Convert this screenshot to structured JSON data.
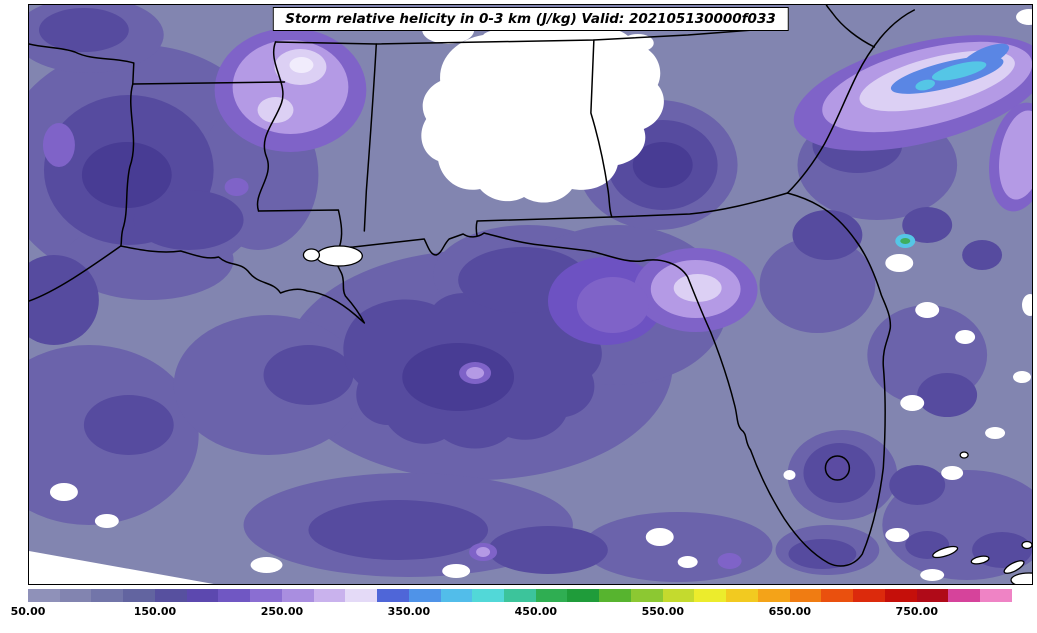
{
  "title": "Storm relative helicity in 0-3 km (J/kg) Valid: 202105130000f033",
  "colorbar": {
    "min": 50,
    "max": 825,
    "interval": 25,
    "ticks": [
      {
        "value": 50,
        "label": "50.00"
      },
      {
        "value": 150,
        "label": "150.00"
      },
      {
        "value": 250,
        "label": "250.00"
      },
      {
        "value": 350,
        "label": "350.00"
      },
      {
        "value": 450,
        "label": "450.00"
      },
      {
        "value": 550,
        "label": "550.00"
      },
      {
        "value": 650,
        "label": "650.00"
      },
      {
        "value": 750,
        "label": "750.00"
      }
    ],
    "colors": [
      "#8f91b9",
      "#8284b0",
      "#7275a9",
      "#6264a0",
      "#57509f",
      "#5c48af",
      "#7057c3",
      "#8a6ed2",
      "#a98ee0",
      "#c9b2ed",
      "#e4daf7",
      "#4f66d8",
      "#4f93e8",
      "#52bdea",
      "#52d8d8",
      "#3cc49b",
      "#2fae52",
      "#1f9c3a",
      "#57b42f",
      "#8cc832",
      "#c4da2e",
      "#ecec2c",
      "#f2ca20",
      "#f4a318",
      "#f07c12",
      "#ea500e",
      "#dc2a0c",
      "#c50f0a",
      "#b00a18",
      "#d6439b",
      "#ef83c5"
    ]
  },
  "chart_data": {
    "type": "heatmap",
    "subtype": "filled-contour weather map",
    "title": "Storm relative helicity in 0-3 km (J/kg) Valid: 202105130000f033",
    "variable": "Storm relative helicity in 0-3 km",
    "units": "J/kg",
    "valid_time": "202105130000f033",
    "region": "Southeastern United States and northern Gulf of Mexico (east Texas/Louisiana eastward to the Atlantic; Tennessee border south past the Florida peninsula)",
    "legend_position": "bottom horizontal colorbar",
    "grid": false,
    "value_range": [
      50,
      825
    ],
    "contour_interval": 25,
    "colorbar_tick_values": [
      50,
      150,
      250,
      350,
      450,
      550,
      650,
      750
    ],
    "colorbar_tick_labels": [
      "50.00",
      "150.00",
      "250.00",
      "350.00",
      "450.00",
      "550.00",
      "650.00",
      "750.00"
    ],
    "notable_features": [
      {
        "location": "central Alabama and west-central Georgia",
        "value_jkg": "< 50 (white minimum)"
      },
      {
        "location": "northern Mississippi",
        "value_jkg": "250-325 local maximum (pale lavender)"
      },
      {
        "location": "Florida Big Bend coast",
        "value_jkg": "250-300 local maximum (pale lavender)"
      },
      {
        "location": "Atlantic off Georgia / South Carolina coast",
        "value_jkg": "300-425 maximum (blue/cyan core)"
      },
      {
        "location": "most of Gulf of Mexico, Louisiana and Deep South",
        "value_jkg": "75-225 (gray-purple to purple)"
      },
      {
        "location": "scattered patches over Atlantic waters, south of the domain, and along the bottom edge",
        "value_jkg": "< 50 (white)"
      }
    ]
  }
}
